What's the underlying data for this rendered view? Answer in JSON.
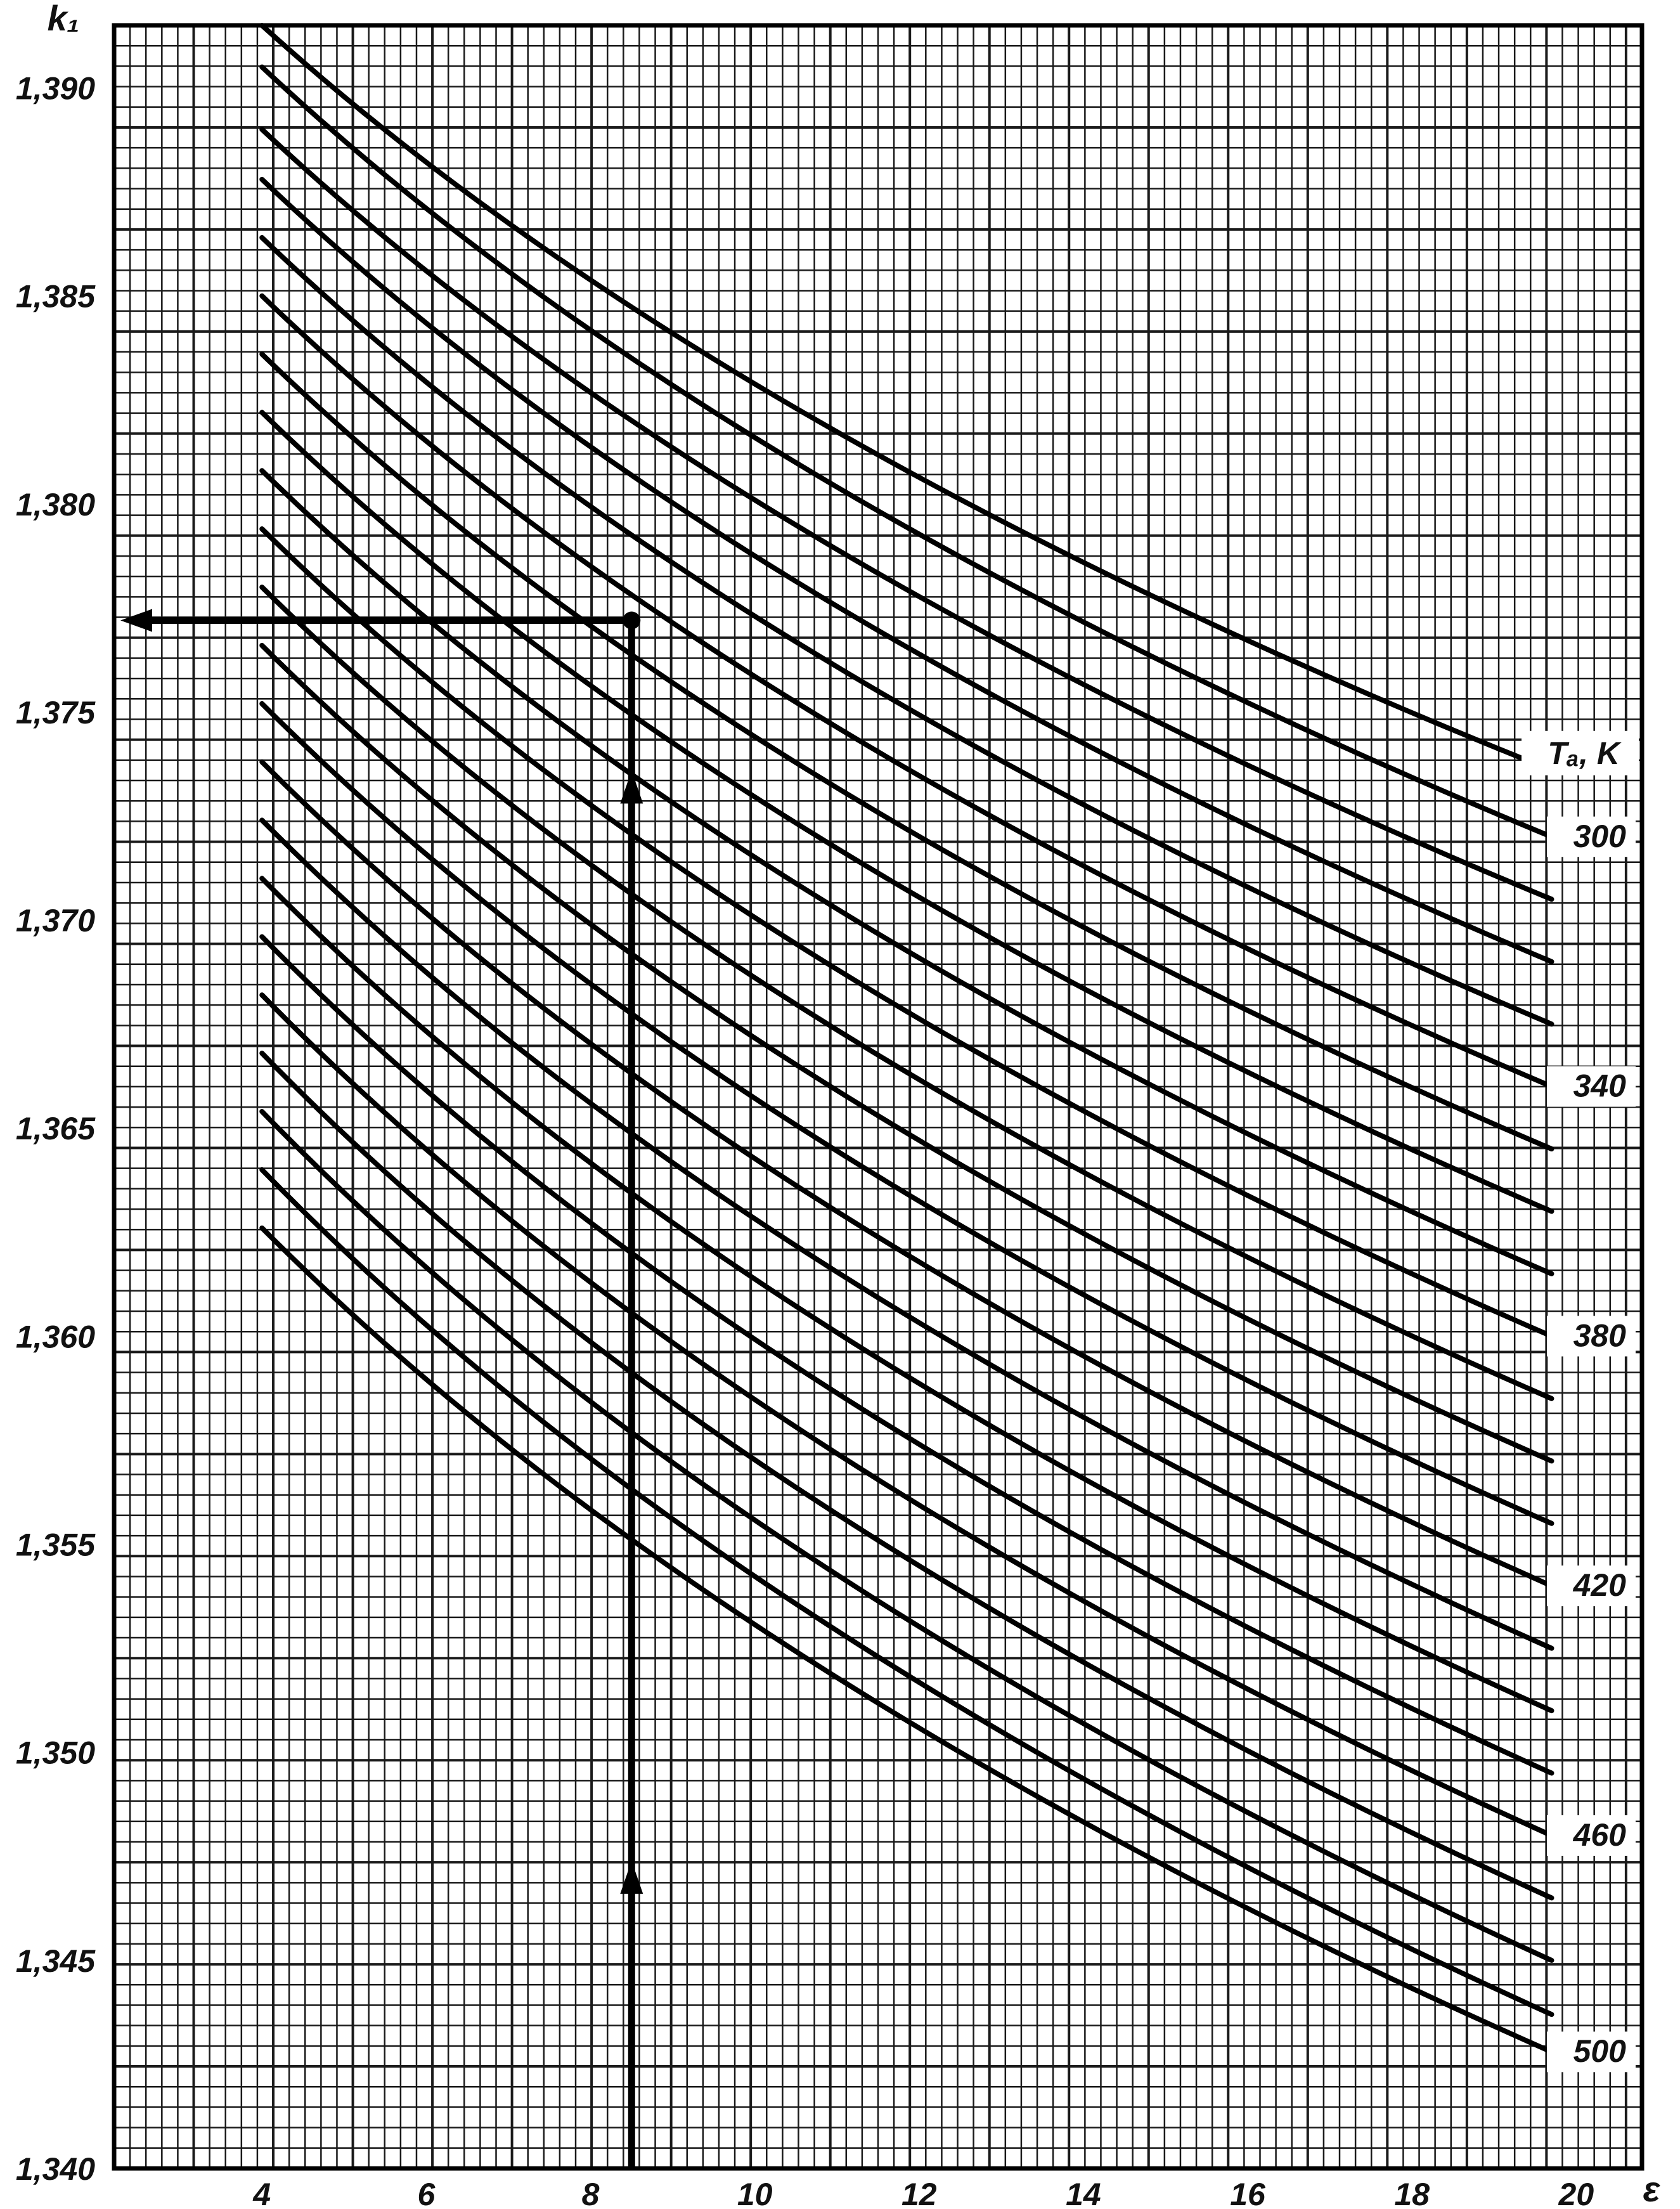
{
  "chart_data": {
    "type": "line",
    "ylabel": "k₁",
    "xlabel": "ε",
    "x_ticks": [
      4,
      6,
      8,
      10,
      12,
      14,
      16,
      18,
      20
    ],
    "x_tick_labels": [
      "4",
      "6",
      "8",
      "10",
      "12",
      "14",
      "16",
      "18",
      "20"
    ],
    "y_ticks": [
      1.34,
      1.345,
      1.35,
      1.355,
      1.36,
      1.365,
      1.37,
      1.375,
      1.38,
      1.385,
      1.39
    ],
    "y_tick_labels": [
      "1,340",
      "1,345",
      "1,350",
      "1,355",
      "1,360",
      "1,365",
      "1,370",
      "1,375",
      "1,380",
      "1,385",
      "1,390"
    ],
    "xlim": [
      2.2,
      20.8
    ],
    "ylim": [
      1.34,
      1.3915
    ],
    "grid": true,
    "legend_title": "Tₐ, K",
    "legend_labels": [
      {
        "text": "300",
        "series": 1
      },
      {
        "text": "340",
        "series": 5
      },
      {
        "text": "380",
        "series": 9
      },
      {
        "text": "420",
        "series": 13
      },
      {
        "text": "460",
        "series": 17
      },
      {
        "text": "500",
        "series": 21
      }
    ],
    "series": [
      {
        "values": [
          [
            4,
            1.3915
          ],
          [
            19.7,
            1.3736
          ]
        ]
      },
      {
        "values": [
          [
            4,
            1.3905
          ],
          [
            19.7,
            1.372
          ]
        ]
      },
      {
        "values": [
          [
            4,
            1.389
          ],
          [
            19.7,
            1.3705
          ]
        ]
      },
      {
        "values": [
          [
            4,
            1.3878
          ],
          [
            19.7,
            1.369
          ]
        ]
      },
      {
        "values": [
          [
            4,
            1.3864
          ],
          [
            19.7,
            1.3675
          ]
        ]
      },
      {
        "values": [
          [
            4,
            1.385
          ],
          [
            19.7,
            1.366
          ]
        ]
      },
      {
        "values": [
          [
            4,
            1.3836
          ],
          [
            19.7,
            1.3645
          ]
        ]
      },
      {
        "values": [
          [
            4,
            1.3822
          ],
          [
            19.7,
            1.363
          ]
        ]
      },
      {
        "values": [
          [
            4,
            1.3808
          ],
          [
            19.7,
            1.3615
          ]
        ]
      },
      {
        "values": [
          [
            4,
            1.3794
          ],
          [
            19.7,
            1.36
          ]
        ]
      },
      {
        "values": [
          [
            4,
            1.378
          ],
          [
            19.7,
            1.3585
          ]
        ]
      },
      {
        "values": [
          [
            4,
            1.3766
          ],
          [
            19.7,
            1.357
          ]
        ]
      },
      {
        "values": [
          [
            4,
            1.3752
          ],
          [
            19.7,
            1.3555
          ]
        ]
      },
      {
        "values": [
          [
            4,
            1.3738
          ],
          [
            19.7,
            1.354
          ]
        ]
      },
      {
        "values": [
          [
            4,
            1.3724
          ],
          [
            19.7,
            1.3525
          ]
        ]
      },
      {
        "values": [
          [
            4,
            1.371
          ],
          [
            19.7,
            1.351
          ]
        ]
      },
      {
        "values": [
          [
            4,
            1.3696
          ],
          [
            19.7,
            1.3495
          ]
        ]
      },
      {
        "values": [
          [
            4,
            1.3682
          ],
          [
            19.7,
            1.348
          ]
        ]
      },
      {
        "values": [
          [
            4,
            1.3668
          ],
          [
            19.7,
            1.3465
          ]
        ]
      },
      {
        "values": [
          [
            4,
            1.3654
          ],
          [
            19.7,
            1.345
          ]
        ]
      },
      {
        "values": [
          [
            4,
            1.364
          ],
          [
            19.7,
            1.3437
          ]
        ]
      },
      {
        "values": [
          [
            4,
            1.3626
          ],
          [
            19.7,
            1.3428
          ]
        ]
      }
    ],
    "example_path": {
      "x": 8.5,
      "y": 1.3772,
      "vertical_from_y": 1.34,
      "horizontal_to_x": 2.2
    }
  }
}
